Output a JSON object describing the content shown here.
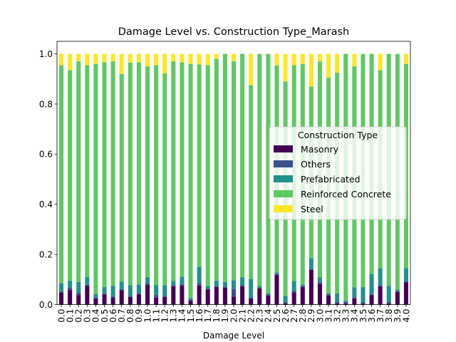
{
  "chart_data": {
    "type": "bar",
    "stacked": true,
    "title": "Damage Level vs. Construction Type_Marash",
    "xlabel": "Damage Level",
    "ylabel": "",
    "ylim": [
      0,
      1.05
    ],
    "yticks": [
      "0.0",
      "0.2",
      "0.4",
      "0.6",
      "0.8",
      "1.0"
    ],
    "categories": [
      "0.0",
      "0.1",
      "0.2",
      "0.3",
      "0.4",
      "0.5",
      "0.6",
      "0.7",
      "0.8",
      "0.9",
      "1.0",
      "1.1",
      "1.2",
      "1.3",
      "1.4",
      "1.5",
      "1.6",
      "1.7",
      "1.8",
      "1.9",
      "2.0",
      "2.1",
      "2.2",
      "2.3",
      "2.4",
      "2.5",
      "2.6",
      "2.7",
      "2.8",
      "2.9",
      "3.0",
      "3.1",
      "3.2",
      "3.3",
      "3.4",
      "3.5",
      "3.6",
      "3.7",
      "3.8",
      "3.9",
      "4.0"
    ],
    "legend": {
      "title": "Construction Type",
      "position": "center-right"
    },
    "series": [
      {
        "name": "Masonry",
        "color": "#440154",
        "values": [
          0.048,
          0.058,
          0.038,
          0.075,
          0.024,
          0.04,
          0.028,
          0.057,
          0.03,
          0.04,
          0.08,
          0.028,
          0.03,
          0.073,
          0.076,
          0.016,
          0.076,
          0.06,
          0.07,
          0.067,
          0.032,
          0.073,
          0.024,
          0.064,
          0.036,
          0.118,
          0.005,
          0.049,
          0.07,
          0.138,
          0.083,
          0.036,
          0.005,
          0.005,
          0.024,
          0.005,
          0.038,
          0.073,
          0.005,
          0.05,
          0.088
        ]
      },
      {
        "name": "Others",
        "color": "#3b528b",
        "values": [
          0.005,
          0.01,
          0.01,
          0.005,
          0.005,
          0.005,
          0.005,
          0.005,
          0.005,
          0.005,
          0.005,
          0.01,
          0.005,
          0.005,
          0.005,
          0.005,
          0.01,
          0.005,
          0.005,
          0.005,
          0.03,
          0.005,
          0.005,
          0.005,
          0.005,
          0.005,
          0.005,
          0.005,
          0.005,
          0.005,
          0.005,
          0.005,
          0.005,
          0.005,
          0.005,
          0.005,
          0.005,
          0.005,
          0.005,
          0.005,
          0.005
        ]
      },
      {
        "name": "Prefabricated",
        "color": "#21918c",
        "values": [
          0.032,
          0.027,
          0.042,
          0.03,
          0.014,
          0.025,
          0.042,
          0.03,
          0.042,
          0.035,
          0.025,
          0.04,
          0.042,
          0.016,
          0.03,
          0.005,
          0.065,
          0.01,
          0.02,
          0.018,
          0.035,
          0.03,
          0.073,
          0.005,
          0.005,
          0.005,
          0.025,
          0.04,
          0.005,
          0.042,
          0.02,
          0.005,
          0.035,
          0.005,
          0.04,
          0.06,
          0.08,
          0.067,
          0.065,
          0.005,
          0.052
        ]
      },
      {
        "name": "Reinforced Concrete",
        "color": "#5ec962",
        "values": [
          0.87,
          0.84,
          0.88,
          0.845,
          0.917,
          0.897,
          0.895,
          0.828,
          0.888,
          0.886,
          0.84,
          0.877,
          0.845,
          0.876,
          0.855,
          0.934,
          0.807,
          0.88,
          0.885,
          0.91,
          0.873,
          0.892,
          0.773,
          0.926,
          0.954,
          0.826,
          0.855,
          0.861,
          0.88,
          0.685,
          0.862,
          0.859,
          0.88,
          0.985,
          0.881,
          0.93,
          0.877,
          0.79,
          0.925,
          0.94,
          0.815
        ]
      },
      {
        "name": "Steel",
        "color": "#fde725",
        "values": [
          0.045,
          0.065,
          0.03,
          0.045,
          0.04,
          0.033,
          0.03,
          0.08,
          0.035,
          0.034,
          0.05,
          0.045,
          0.078,
          0.03,
          0.034,
          0.04,
          0.042,
          0.045,
          0.02,
          0.0,
          0.03,
          0.0,
          0.125,
          0.0,
          0.0,
          0.046,
          0.11,
          0.045,
          0.04,
          0.13,
          0.03,
          0.095,
          0.075,
          0.0,
          0.05,
          0.0,
          0.0,
          0.065,
          0.0,
          0.0,
          0.04
        ]
      }
    ]
  }
}
